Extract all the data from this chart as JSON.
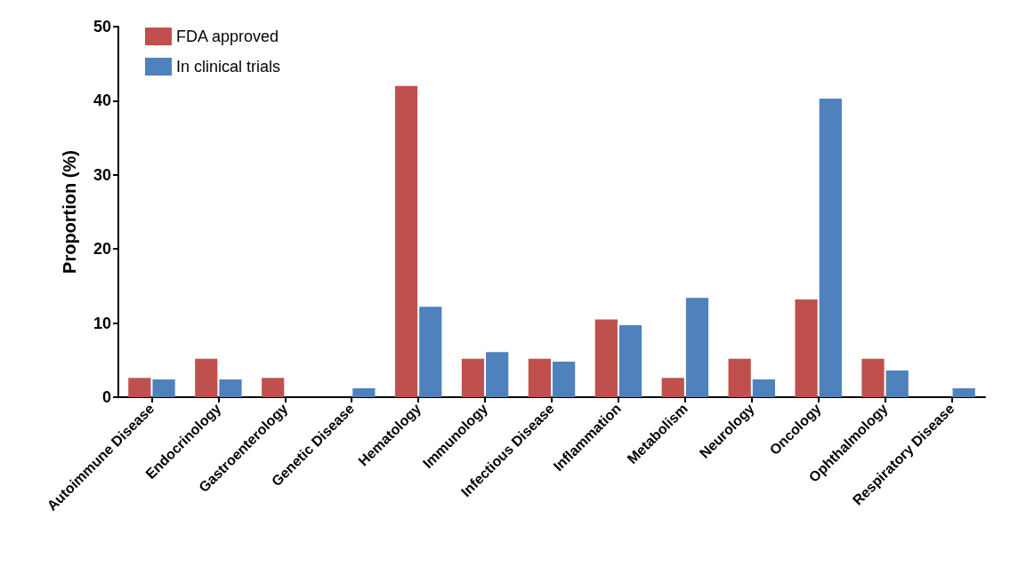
{
  "chart_data": {
    "type": "bar",
    "ylabel": "Proportion (%)",
    "categories": [
      "Autoimmune Disease",
      "Endocrinology",
      "Gastroenterology",
      "Genetic Disease",
      "Hematology",
      "Immunology",
      "Infectious Disease",
      "Inflammation",
      "Metabolism",
      "Neurology",
      "Oncology",
      "Ophthalmology",
      "Respiratory Disease"
    ],
    "series": [
      {
        "name": "FDA approved",
        "color": "#c0504d",
        "values": [
          2.6,
          5.2,
          2.6,
          0,
          42.0,
          5.2,
          5.2,
          10.5,
          2.6,
          5.2,
          13.2,
          5.2,
          0
        ]
      },
      {
        "name": "In clinical trials",
        "color": "#4f81bd",
        "values": [
          2.4,
          2.4,
          0,
          1.2,
          12.2,
          6.1,
          4.8,
          9.7,
          13.4,
          2.4,
          40.3,
          3.6,
          1.2
        ]
      }
    ],
    "ylim": [
      0,
      50
    ],
    "yticks": [
      0,
      10,
      20,
      30,
      40,
      50
    ],
    "grid": false,
    "legend": "top left"
  }
}
